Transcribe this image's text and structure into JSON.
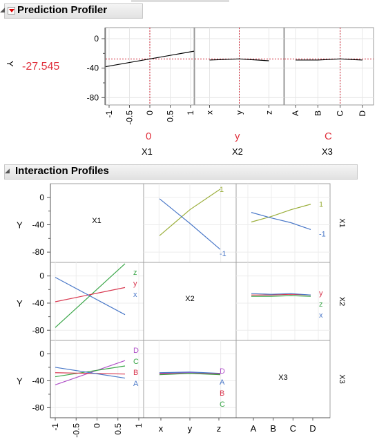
{
  "prediction_profiler": {
    "title": "Prediction Profiler",
    "response_label": "Y",
    "response_value": "-27.545",
    "factors": [
      {
        "name": "X1",
        "current": "0"
      },
      {
        "name": "X2",
        "current": "y"
      },
      {
        "name": "X3",
        "current": "C"
      }
    ]
  },
  "interaction_profiles": {
    "title": "Interaction Profiles",
    "response_label": "Y",
    "row_labels": [
      "X1",
      "X2",
      "X3"
    ],
    "diag_labels": [
      "X1",
      "X2",
      "X3"
    ]
  },
  "colors": {
    "red": "#e0303c",
    "green": "#3aa648",
    "blue": "#4a78c8",
    "olive": "#9aae3a",
    "purple": "#b050c8",
    "crimson": "#d83850"
  },
  "chart_data": [
    {
      "type": "line",
      "name": "prediction-profiler",
      "ylim": [
        -90,
        15
      ],
      "yticks": [
        0,
        -40,
        -80
      ],
      "panels": [
        {
          "factor": "X1",
          "x": [
            "-1",
            "-0.5",
            "0",
            "0.5",
            "1"
          ],
          "x_values": [
            -1,
            1
          ],
          "y_values": [
            -38,
            -17
          ],
          "current_x": 0
        },
        {
          "factor": "X2",
          "x": [
            "x",
            "y",
            "z"
          ],
          "y_values": [
            -29,
            -27.5,
            -30
          ],
          "current_x": "y"
        },
        {
          "factor": "X3",
          "x": [
            "A",
            "B",
            "C",
            "D"
          ],
          "y_values": [
            -29,
            -29,
            -27.5,
            -29
          ],
          "current_x": "C"
        }
      ],
      "current_y": -27.545
    },
    {
      "type": "line",
      "name": "interaction-profiles",
      "ylim": [
        -95,
        20
      ],
      "yticks": [
        0,
        -40,
        -80
      ],
      "cells": [
        {
          "row": "X1",
          "col": "X2",
          "x": [
            "x",
            "y",
            "z"
          ],
          "series": [
            {
              "name": "1",
              "color": "#9aae3a",
              "values": [
                -56,
                -18,
                12
              ]
            },
            {
              "name": "-1",
              "color": "#4a78c8",
              "values": [
                -2,
                -38,
                -76
              ]
            }
          ]
        },
        {
          "row": "X1",
          "col": "X3",
          "x": [
            "A",
            "B",
            "C",
            "D"
          ],
          "series": [
            {
              "name": "1",
              "color": "#9aae3a",
              "values": [
                -36,
                -28,
                -18,
                -10
              ]
            },
            {
              "name": "-1",
              "color": "#4a78c8",
              "values": [
                -22,
                -30,
                -37,
                -47
              ]
            }
          ]
        },
        {
          "row": "X2",
          "col": "X1",
          "x": [
            -1,
            1
          ],
          "series": [
            {
              "name": "z",
              "color": "#3aa648",
              "values": [
                -76,
                18
              ]
            },
            {
              "name": "y",
              "color": "#d83850",
              "values": [
                -38,
                -17
              ]
            },
            {
              "name": "x",
              "color": "#4a78c8",
              "values": [
                -2,
                -57
              ]
            }
          ]
        },
        {
          "row": "X2",
          "col": "X3",
          "x": [
            "A",
            "B",
            "C",
            "D"
          ],
          "series": [
            {
              "name": "y",
              "color": "#d83850",
              "values": [
                -28,
                -28,
                -27,
                -28
              ]
            },
            {
              "name": "z",
              "color": "#3aa648",
              "values": [
                -30,
                -30,
                -29,
                -30
              ]
            },
            {
              "name": "x",
              "color": "#4a78c8",
              "values": [
                -26,
                -27,
                -26,
                -28
              ]
            }
          ]
        },
        {
          "row": "X3",
          "col": "X1",
          "x": [
            -1,
            1
          ],
          "series": [
            {
              "name": "D",
              "color": "#b050c8",
              "values": [
                -46,
                -10
              ]
            },
            {
              "name": "C",
              "color": "#3aa648",
              "values": [
                -34,
                -18
              ]
            },
            {
              "name": "B",
              "color": "#d83850",
              "values": [
                -28,
                -30
              ]
            },
            {
              "name": "A",
              "color": "#4a78c8",
              "values": [
                -20,
                -36
              ]
            }
          ]
        },
        {
          "row": "X3",
          "col": "X2",
          "x": [
            "x",
            "y",
            "z"
          ],
          "series": [
            {
              "name": "D",
              "color": "#b050c8",
              "values": [
                -29,
                -28,
                -30
              ]
            },
            {
              "name": "A",
              "color": "#4a78c8",
              "values": [
                -28,
                -27,
                -29
              ]
            },
            {
              "name": "B",
              "color": "#d83850",
              "values": [
                -30,
                -29,
                -30
              ]
            },
            {
              "name": "C",
              "color": "#3aa648",
              "values": [
                -31,
                -29,
                -31
              ]
            }
          ]
        }
      ],
      "x_axis": [
        {
          "col": "X1",
          "ticks": [
            "-1",
            "-0.5",
            "0",
            "0.5",
            "1"
          ]
        },
        {
          "col": "X2",
          "ticks": [
            "x",
            "y",
            "z"
          ]
        },
        {
          "col": "X3",
          "ticks": [
            "A",
            "B",
            "C",
            "D"
          ]
        }
      ]
    }
  ]
}
